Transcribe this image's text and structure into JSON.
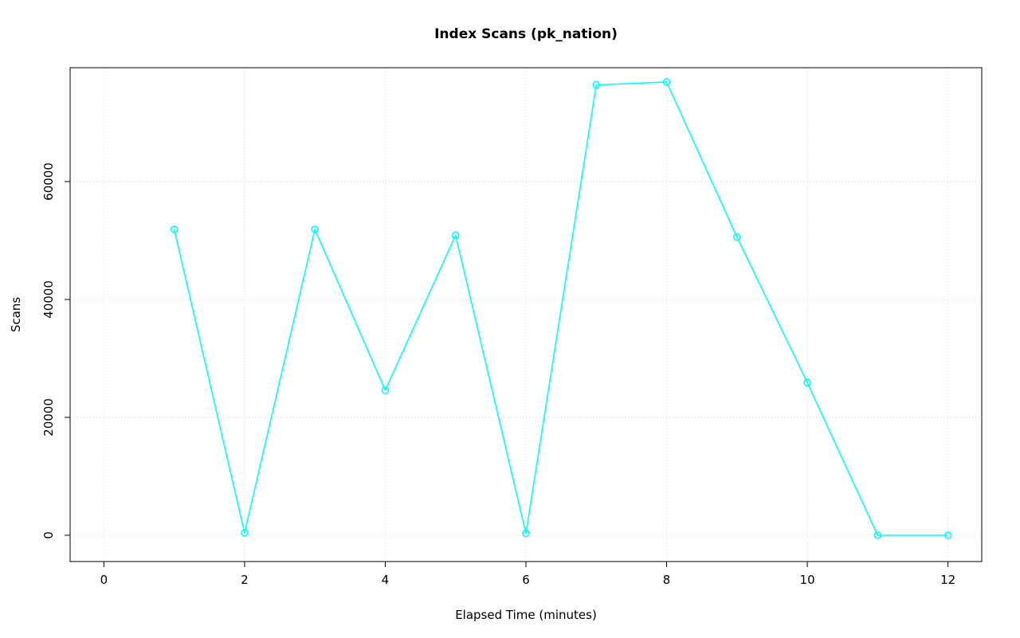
{
  "chart_data": {
    "type": "line",
    "title": "Index Scans (pk_nation)",
    "xlabel": "Elapsed Time (minutes)",
    "ylabel": "Scans",
    "x": [
      1,
      2,
      3,
      4,
      5,
      6,
      7,
      8,
      9,
      10,
      11,
      12
    ],
    "y": [
      51900,
      400,
      51900,
      24600,
      50900,
      300,
      76400,
      76900,
      50600,
      25900,
      0,
      0
    ],
    "xticks": [
      0,
      2,
      4,
      6,
      8,
      10,
      12
    ],
    "yticks": [
      0,
      20000,
      40000,
      60000
    ],
    "xlim": [
      -0.48,
      12.48
    ],
    "ylim": [
      -4460,
      79320
    ],
    "grid": true,
    "legend": "none",
    "line_color": "#00FFFF",
    "marker": "open-circle",
    "marker_color": "#00FFFF",
    "grid_color": "#D3D3D3",
    "axis_color": "#000000",
    "background_color": "#FFFFFF"
  }
}
